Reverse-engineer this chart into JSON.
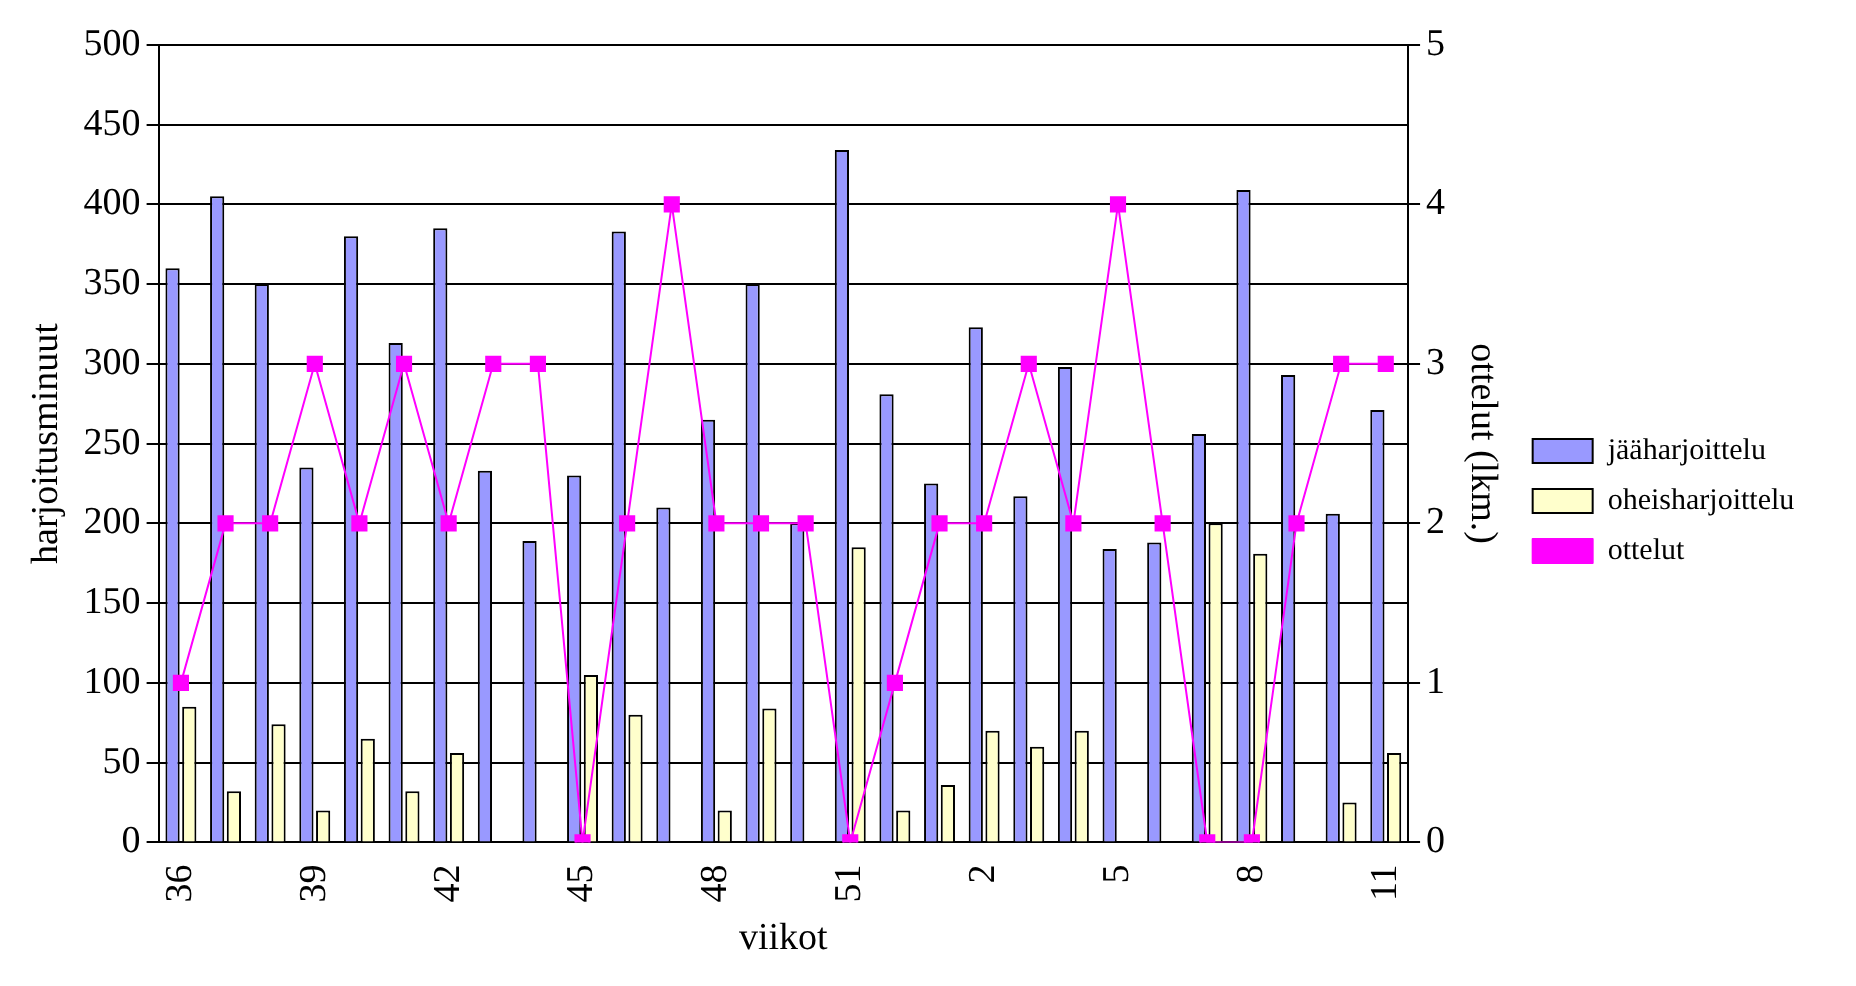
{
  "chart_data": {
    "type": "bar",
    "xlabel": "viikot",
    "ylabel": "harjoitusminuut",
    "y2label": "ottelut (lkm.)",
    "categories": [
      "36",
      null,
      null,
      "39",
      null,
      null,
      "42",
      null,
      null,
      "45",
      null,
      null,
      "48",
      null,
      null,
      "51",
      null,
      null,
      "2",
      null,
      null,
      "5",
      null,
      null,
      "8",
      null,
      null,
      "11"
    ],
    "series": [
      {
        "name": "jääharjoittelu",
        "color": "#9999ff",
        "values": [
          360,
          405,
          350,
          235,
          380,
          313,
          385,
          233,
          189,
          230,
          383,
          210,
          265,
          350,
          200,
          434,
          281,
          225,
          323,
          217,
          298,
          184,
          188,
          256,
          409,
          293,
          206,
          271
        ]
      },
      {
        "name": "oheisharjoittelu",
        "color": "#ffffcc",
        "values": [
          85,
          32,
          74,
          20,
          65,
          32,
          56,
          0,
          0,
          105,
          80,
          0,
          20,
          84,
          0,
          185,
          20,
          36,
          70,
          60,
          70,
          0,
          0,
          200,
          181,
          0,
          25,
          56
        ]
      },
      {
        "name": "ottelut",
        "type": "line",
        "axis": "y2",
        "color": "#ff00ff",
        "marker": "square",
        "values": [
          1,
          2,
          2,
          3,
          2,
          3,
          2,
          3,
          3,
          0,
          2,
          4,
          2,
          2,
          2,
          0,
          1,
          2,
          2,
          3,
          2,
          4,
          2,
          0,
          0,
          2,
          3,
          3
        ]
      }
    ],
    "ylim": [
      0,
      500
    ],
    "yticks": [
      0,
      50,
      100,
      150,
      200,
      250,
      300,
      350,
      400,
      450,
      500
    ],
    "y2lim": [
      0,
      5
    ],
    "y2ticks": [
      0,
      1,
      2,
      3,
      4,
      5
    ],
    "grid": "y",
    "legend": "right"
  }
}
